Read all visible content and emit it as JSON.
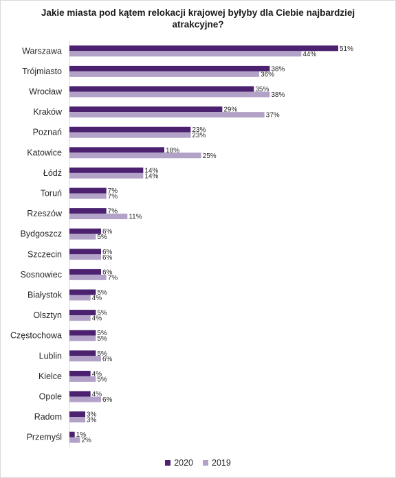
{
  "chart_data": {
    "type": "bar",
    "orientation": "horizontal",
    "title": "Jakie miasta pod kątem relokacji krajowej byłyby dla Ciebie najbardziej atrakcyjne?",
    "categories": [
      "Warszawa",
      "Trójmiasto",
      "Wrocław",
      "Kraków",
      "Poznań",
      "Katowice",
      "Łódź",
      "Toruń",
      "Rzeszów",
      "Bydgoszcz",
      "Szczecin",
      "Sosnowiec",
      "Białystok",
      "Olsztyn",
      "Częstochowa",
      "Lublin",
      "Kielce",
      "Opole",
      "Radom",
      "Przemyśl"
    ],
    "series": [
      {
        "name": "2020",
        "color": "#4b2170",
        "values": [
          51,
          38,
          35,
          29,
          23,
          18,
          14,
          7,
          7,
          6,
          6,
          6,
          5,
          5,
          5,
          5,
          4,
          4,
          3,
          1
        ]
      },
      {
        "name": "2019",
        "color": "#b3a2c7",
        "values": [
          44,
          36,
          38,
          37,
          23,
          25,
          14,
          7,
          11,
          5,
          6,
          7,
          4,
          4,
          5,
          6,
          5,
          6,
          3,
          2
        ]
      }
    ],
    "value_suffix": "%",
    "xlim": [
      0,
      51
    ],
    "grid": false,
    "legend_position": "bottom"
  }
}
